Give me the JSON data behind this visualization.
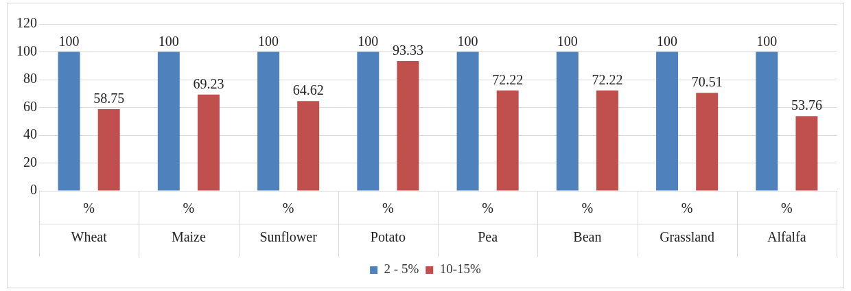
{
  "chart_data": {
    "type": "bar",
    "categories": [
      "%\nWheat",
      "%\nMaize",
      "%\nSunflower",
      "%\nPotato",
      "%\nPea",
      "%\nBean",
      "%\nGrassland",
      "%\nAlfalfa"
    ],
    "series": [
      {
        "name": "2 - 5%",
        "color": "#4f81bd",
        "values": [
          100,
          100,
          100,
          100,
          100,
          100,
          100,
          100
        ]
      },
      {
        "name": "10-15%",
        "color": "#c0504d",
        "values": [
          58.75,
          69.23,
          64.62,
          93.33,
          72.22,
          72.22,
          70.51,
          53.76
        ]
      }
    ],
    "ylim": [
      0,
      120
    ],
    "yticks": [
      0,
      20,
      40,
      60,
      80,
      100,
      120
    ],
    "grid": "y",
    "legend": "bottom",
    "data_labels": true
  }
}
